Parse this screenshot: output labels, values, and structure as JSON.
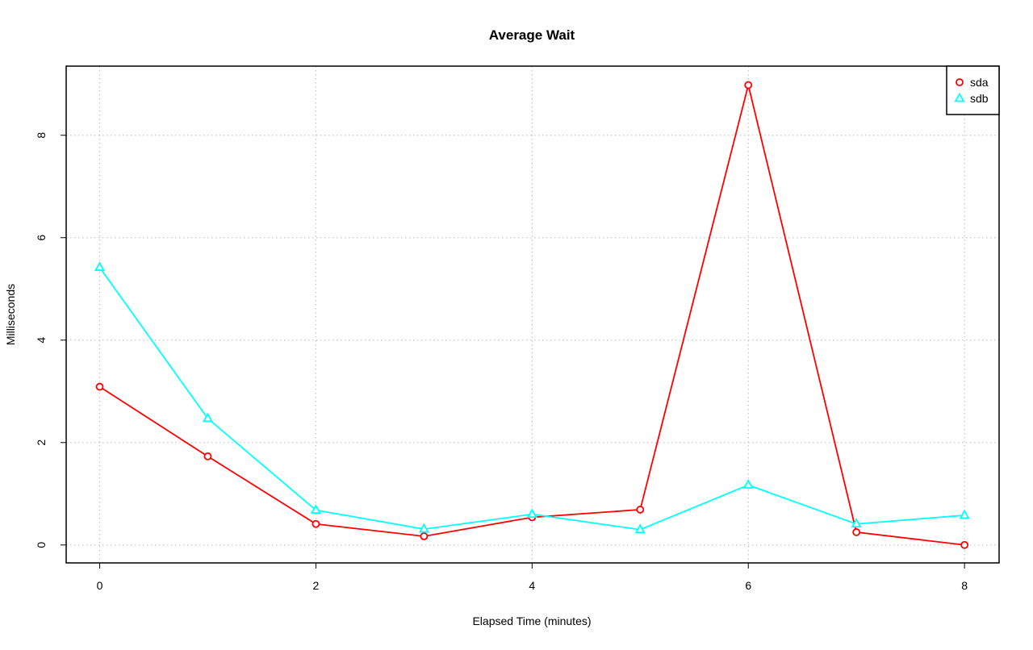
{
  "chart_data": {
    "type": "line",
    "title": "Average Wait",
    "xlabel": "Elapsed Time (minutes)",
    "ylabel": "Milliseconds",
    "x": [
      0,
      1,
      2,
      3,
      4,
      5,
      6,
      7,
      8
    ],
    "xlim": [
      -0.31,
      8.32
    ],
    "ylim": [
      -0.35,
      9.35
    ],
    "xticks": [
      0,
      2,
      4,
      6,
      8
    ],
    "yticks": [
      0,
      2,
      4,
      6,
      8
    ],
    "xtick_labels": [
      "0",
      "2",
      "4",
      "6",
      "8"
    ],
    "ytick_labels": [
      "0",
      "2",
      "4",
      "6",
      "8"
    ],
    "grid": true,
    "legend_position": "top-right",
    "series": [
      {
        "name": "sda",
        "color": "#ff0000",
        "marker": "circle",
        "values": [
          3.09,
          1.73,
          0.41,
          0.17,
          0.54,
          0.69,
          8.98,
          0.25,
          0.0
        ]
      },
      {
        "name": "sdb",
        "color": "#00ffff",
        "marker": "triangle",
        "values": [
          5.42,
          2.47,
          0.68,
          0.31,
          0.6,
          0.3,
          1.17,
          0.41,
          0.58
        ]
      }
    ]
  }
}
